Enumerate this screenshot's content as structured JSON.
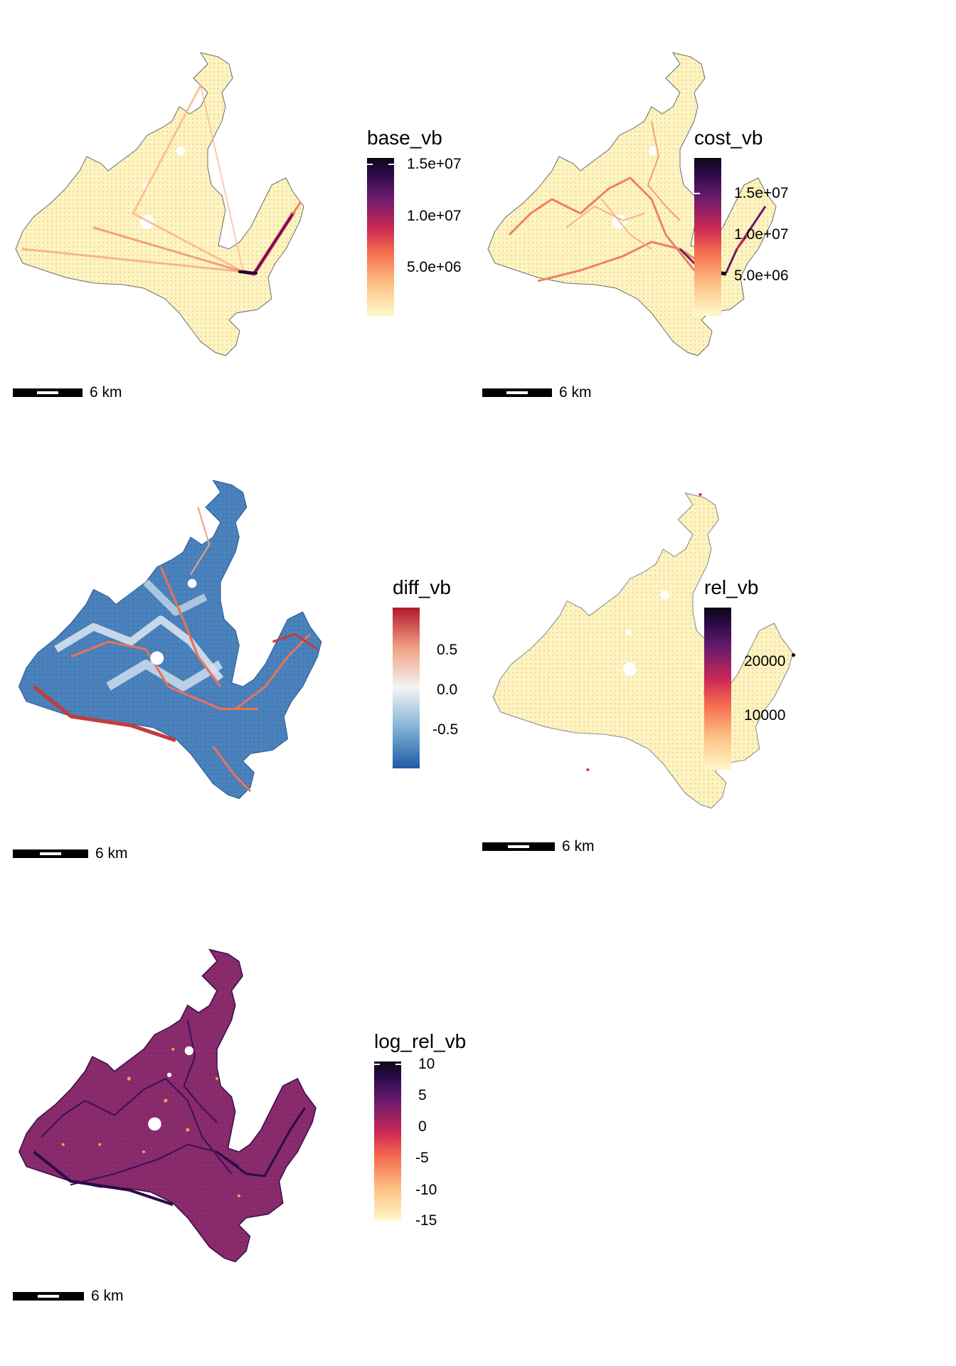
{
  "panels": [
    {
      "id": "base",
      "legend": {
        "title": "base_vb",
        "ticks": [
          "1.5e+07",
          "1.0e+07",
          "5.0e+06"
        ]
      },
      "scalebar": {
        "label": "6 km"
      },
      "colors": {
        "low": "#fff8c8",
        "high": "#0c0714"
      }
    },
    {
      "id": "cost",
      "legend": {
        "title": "cost_vb",
        "ticks": [
          "1.5e+07",
          "1.0e+07",
          "5.0e+06"
        ]
      },
      "scalebar": {
        "label": "6 km"
      },
      "colors": {
        "low": "#fff8c8",
        "high": "#0c0714"
      }
    },
    {
      "id": "diff",
      "legend": {
        "title": "diff_vb",
        "ticks": [
          "0.5",
          "0.0",
          "-0.5"
        ]
      },
      "scalebar": {
        "label": "6 km"
      },
      "colors": {
        "low": "#1f5aa5",
        "mid": "#f4f4f4",
        "high": "#b2182b"
      }
    },
    {
      "id": "rel",
      "legend": {
        "title": "rel_vb",
        "ticks": [
          "20000",
          "10000"
        ]
      },
      "scalebar": {
        "label": "6 km"
      },
      "colors": {
        "low": "#fff8c8",
        "high": "#0c0714"
      }
    },
    {
      "id": "logrel",
      "legend": {
        "title": "log_rel_vb",
        "ticks": [
          "10",
          "5",
          "0",
          "-5",
          "-10",
          "-15"
        ]
      },
      "scalebar": {
        "label": "6 km"
      },
      "colors": {
        "low": "#fff8c8",
        "high": "#0c0714"
      }
    }
  ]
}
